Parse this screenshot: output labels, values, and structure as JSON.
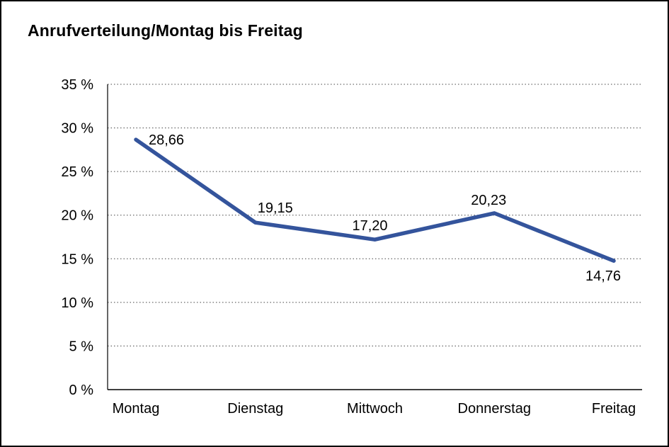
{
  "chart_data": {
    "type": "line",
    "title": "Anrufverteilung/Montag bis Freitag",
    "categories": [
      "Montag",
      "Dienstag",
      "Mittwoch",
      "Donnerstag",
      "Freitag"
    ],
    "values": [
      28.66,
      19.15,
      17.2,
      20.23,
      14.76
    ],
    "value_labels": [
      "28,66",
      "19,15",
      "17,20",
      "20,23",
      "14,76"
    ],
    "xlabel": "",
    "ylabel": "",
    "ylim": [
      0,
      35
    ],
    "ytick_values": [
      0,
      5,
      10,
      15,
      20,
      25,
      30,
      35
    ],
    "ytick_labels": [
      "0 %",
      "5 %",
      "10 %",
      "15 %",
      "20 %",
      "25 %",
      "30 %",
      "35 %"
    ],
    "grid": "dotted-horizontal",
    "legend": "none",
    "line_color": "#34549c",
    "axis_color": "#000000",
    "grid_color": "#444444",
    "text_color": "#000000",
    "background_color": "#ffffff"
  }
}
